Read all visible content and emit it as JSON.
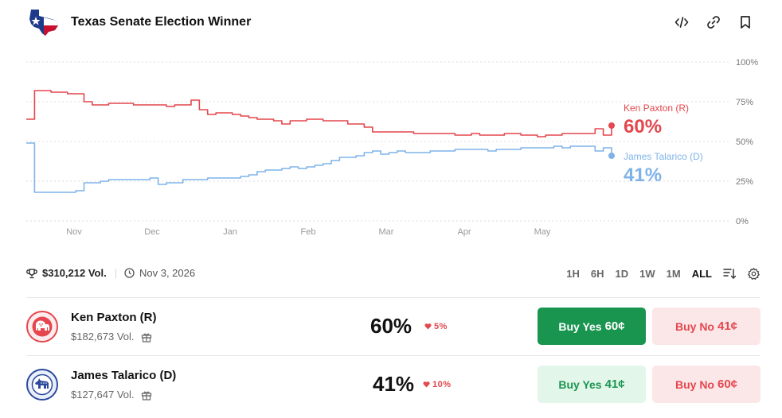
{
  "header": {
    "title": "Texas Senate Election Winner",
    "actions": [
      {
        "name": "embed-icon"
      },
      {
        "name": "link-icon"
      },
      {
        "name": "bookmark-icon"
      }
    ]
  },
  "chart_data": {
    "type": "line",
    "x_labels": [
      "Nov",
      "Dec",
      "Jan",
      "Feb",
      "Mar",
      "Apr",
      "May"
    ],
    "y_ticks": [
      "100%",
      "75%",
      "50%",
      "25%",
      "0%"
    ],
    "ylim": [
      0,
      100
    ],
    "grid": true,
    "series": [
      {
        "name": "Ken Paxton (R)",
        "label_value": "60%",
        "color": "#e4474d",
        "values": [
          64,
          82,
          82,
          81,
          81,
          80,
          80,
          75,
          73,
          73,
          74,
          74,
          74,
          73,
          73,
          73,
          73,
          72,
          73,
          73,
          76,
          70,
          67,
          68,
          68,
          67,
          66,
          65,
          64,
          64,
          63,
          61,
          63,
          63,
          64,
          64,
          63,
          63,
          63,
          61,
          61,
          59,
          56,
          56,
          56,
          56,
          56,
          55,
          55,
          55,
          55,
          55,
          54,
          54,
          55,
          54,
          54,
          54,
          55,
          55,
          54,
          54,
          53,
          54,
          54,
          55,
          55,
          55,
          55,
          58,
          54,
          60
        ]
      },
      {
        "name": "James Talarico (D)",
        "label_value": "41%",
        "color": "#7fb3e8",
        "values": [
          49,
          18,
          18,
          18,
          18,
          18,
          19,
          24,
          24,
          25,
          26,
          26,
          26,
          26,
          26,
          27,
          23,
          24,
          24,
          26,
          26,
          26,
          27,
          27,
          27,
          27,
          28,
          29,
          31,
          32,
          32,
          33,
          34,
          33,
          34,
          35,
          36,
          38,
          40,
          40,
          41,
          43,
          44,
          42,
          43,
          44,
          43,
          43,
          43,
          44,
          44,
          44,
          45,
          45,
          45,
          45,
          44,
          45,
          45,
          45,
          46,
          46,
          46,
          46,
          47,
          46,
          47,
          47,
          47,
          44,
          46,
          41
        ]
      }
    ]
  },
  "stats": {
    "volume": "$310,212 Vol.",
    "date": "Nov 3, 2026",
    "ranges": [
      "1H",
      "6H",
      "1D",
      "1W",
      "1M",
      "ALL"
    ],
    "active_range": "ALL"
  },
  "outcomes": [
    {
      "name": "Ken Paxton (R)",
      "volume": "$182,673 Vol.",
      "percent": "60%",
      "change": "5%",
      "buy_yes": "Buy Yes",
      "yes_price": "60¢",
      "buy_no": "Buy No",
      "no_price": "41¢"
    },
    {
      "name": "James Talarico (D)",
      "volume": "$127,647 Vol.",
      "percent": "41%",
      "change": "10%",
      "buy_yes": "Buy Yes",
      "yes_price": "41¢",
      "buy_no": "Buy No",
      "no_price": "60¢"
    }
  ],
  "colors": {
    "republican": "#e4474d",
    "democrat": "#2b4a9b",
    "yes_active_bg": "#1a9550",
    "yes_light_bg": "#e3f6ea",
    "yes_light_text": "#1a9550",
    "no_bg": "#fbe6e8",
    "no_text": "#e4474d"
  }
}
